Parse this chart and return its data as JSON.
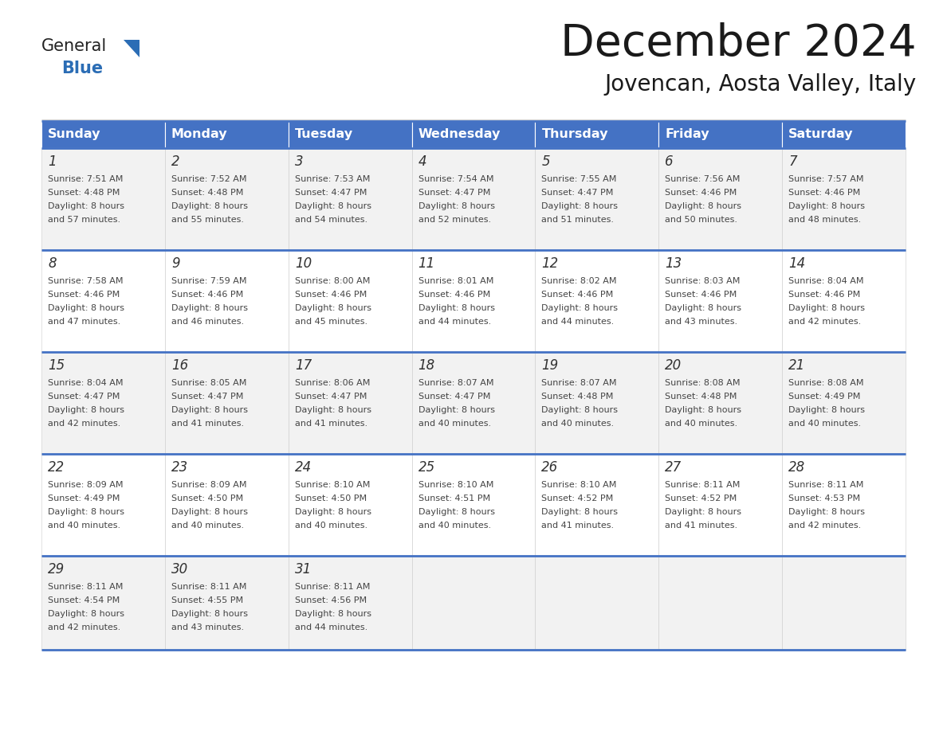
{
  "title": "December 2024",
  "subtitle": "Jovencan, Aosta Valley, Italy",
  "header_bg_color": "#4472C4",
  "header_text_color": "#FFFFFF",
  "row_bg_colors": [
    "#F2F2F2",
    "#FFFFFF",
    "#F2F2F2",
    "#FFFFFF",
    "#F2F2F2"
  ],
  "separator_color": "#4472C4",
  "cell_border_color": "#CCCCCC",
  "day_headers": [
    "Sunday",
    "Monday",
    "Tuesday",
    "Wednesday",
    "Thursday",
    "Friday",
    "Saturday"
  ],
  "days": [
    {
      "day": 1,
      "col": 0,
      "row": 0,
      "sunrise": "7:51 AM",
      "sunset": "4:48 PM",
      "daylight_min": "57"
    },
    {
      "day": 2,
      "col": 1,
      "row": 0,
      "sunrise": "7:52 AM",
      "sunset": "4:48 PM",
      "daylight_min": "55"
    },
    {
      "day": 3,
      "col": 2,
      "row": 0,
      "sunrise": "7:53 AM",
      "sunset": "4:47 PM",
      "daylight_min": "54"
    },
    {
      "day": 4,
      "col": 3,
      "row": 0,
      "sunrise": "7:54 AM",
      "sunset": "4:47 PM",
      "daylight_min": "52"
    },
    {
      "day": 5,
      "col": 4,
      "row": 0,
      "sunrise": "7:55 AM",
      "sunset": "4:47 PM",
      "daylight_min": "51"
    },
    {
      "day": 6,
      "col": 5,
      "row": 0,
      "sunrise": "7:56 AM",
      "sunset": "4:46 PM",
      "daylight_min": "50"
    },
    {
      "day": 7,
      "col": 6,
      "row": 0,
      "sunrise": "7:57 AM",
      "sunset": "4:46 PM",
      "daylight_min": "48"
    },
    {
      "day": 8,
      "col": 0,
      "row": 1,
      "sunrise": "7:58 AM",
      "sunset": "4:46 PM",
      "daylight_min": "47"
    },
    {
      "day": 9,
      "col": 1,
      "row": 1,
      "sunrise": "7:59 AM",
      "sunset": "4:46 PM",
      "daylight_min": "46"
    },
    {
      "day": 10,
      "col": 2,
      "row": 1,
      "sunrise": "8:00 AM",
      "sunset": "4:46 PM",
      "daylight_min": "45"
    },
    {
      "day": 11,
      "col": 3,
      "row": 1,
      "sunrise": "8:01 AM",
      "sunset": "4:46 PM",
      "daylight_min": "44"
    },
    {
      "day": 12,
      "col": 4,
      "row": 1,
      "sunrise": "8:02 AM",
      "sunset": "4:46 PM",
      "daylight_min": "44"
    },
    {
      "day": 13,
      "col": 5,
      "row": 1,
      "sunrise": "8:03 AM",
      "sunset": "4:46 PM",
      "daylight_min": "43"
    },
    {
      "day": 14,
      "col": 6,
      "row": 1,
      "sunrise": "8:04 AM",
      "sunset": "4:46 PM",
      "daylight_min": "42"
    },
    {
      "day": 15,
      "col": 0,
      "row": 2,
      "sunrise": "8:04 AM",
      "sunset": "4:47 PM",
      "daylight_min": "42"
    },
    {
      "day": 16,
      "col": 1,
      "row": 2,
      "sunrise": "8:05 AM",
      "sunset": "4:47 PM",
      "daylight_min": "41"
    },
    {
      "day": 17,
      "col": 2,
      "row": 2,
      "sunrise": "8:06 AM",
      "sunset": "4:47 PM",
      "daylight_min": "41"
    },
    {
      "day": 18,
      "col": 3,
      "row": 2,
      "sunrise": "8:07 AM",
      "sunset": "4:47 PM",
      "daylight_min": "40"
    },
    {
      "day": 19,
      "col": 4,
      "row": 2,
      "sunrise": "8:07 AM",
      "sunset": "4:48 PM",
      "daylight_min": "40"
    },
    {
      "day": 20,
      "col": 5,
      "row": 2,
      "sunrise": "8:08 AM",
      "sunset": "4:48 PM",
      "daylight_min": "40"
    },
    {
      "day": 21,
      "col": 6,
      "row": 2,
      "sunrise": "8:08 AM",
      "sunset": "4:49 PM",
      "daylight_min": "40"
    },
    {
      "day": 22,
      "col": 0,
      "row": 3,
      "sunrise": "8:09 AM",
      "sunset": "4:49 PM",
      "daylight_min": "40"
    },
    {
      "day": 23,
      "col": 1,
      "row": 3,
      "sunrise": "8:09 AM",
      "sunset": "4:50 PM",
      "daylight_min": "40"
    },
    {
      "day": 24,
      "col": 2,
      "row": 3,
      "sunrise": "8:10 AM",
      "sunset": "4:50 PM",
      "daylight_min": "40"
    },
    {
      "day": 25,
      "col": 3,
      "row": 3,
      "sunrise": "8:10 AM",
      "sunset": "4:51 PM",
      "daylight_min": "40"
    },
    {
      "day": 26,
      "col": 4,
      "row": 3,
      "sunrise": "8:10 AM",
      "sunset": "4:52 PM",
      "daylight_min": "41"
    },
    {
      "day": 27,
      "col": 5,
      "row": 3,
      "sunrise": "8:11 AM",
      "sunset": "4:52 PM",
      "daylight_min": "41"
    },
    {
      "day": 28,
      "col": 6,
      "row": 3,
      "sunrise": "8:11 AM",
      "sunset": "4:53 PM",
      "daylight_min": "42"
    },
    {
      "day": 29,
      "col": 0,
      "row": 4,
      "sunrise": "8:11 AM",
      "sunset": "4:54 PM",
      "daylight_min": "42"
    },
    {
      "day": 30,
      "col": 1,
      "row": 4,
      "sunrise": "8:11 AM",
      "sunset": "4:55 PM",
      "daylight_min": "43"
    },
    {
      "day": 31,
      "col": 2,
      "row": 4,
      "sunrise": "8:11 AM",
      "sunset": "4:56 PM",
      "daylight_min": "44"
    }
  ],
  "logo_general_color": "#222222",
  "logo_blue_color": "#2B6DB5",
  "logo_triangle_color": "#2B6DB5"
}
